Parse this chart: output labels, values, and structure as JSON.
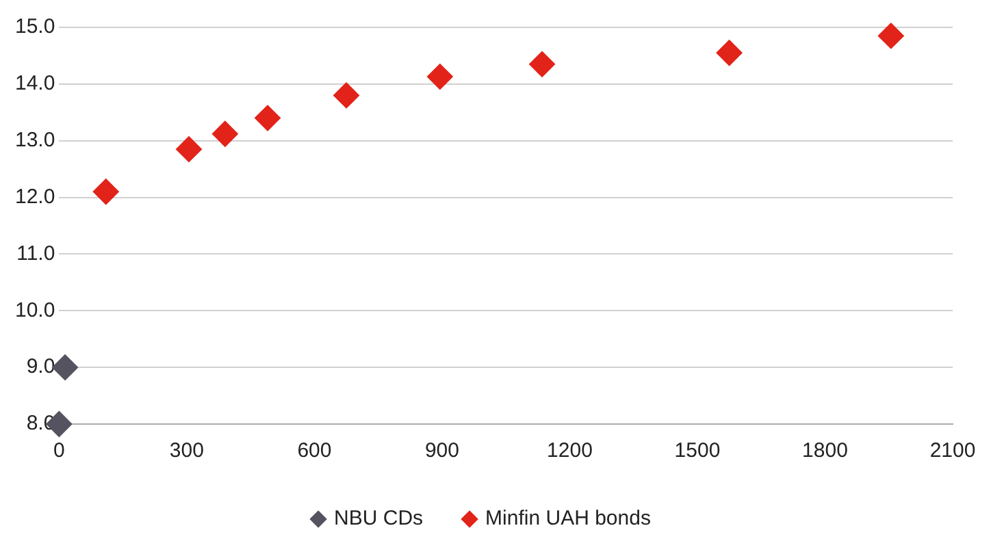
{
  "chart_data": {
    "type": "scatter",
    "grid": "y",
    "legend": "bottom",
    "marker": "diamond",
    "xlim": [
      0,
      2100
    ],
    "xticks": [
      0,
      300,
      600,
      900,
      1200,
      1500,
      1800,
      2100
    ],
    "ylim": [
      8,
      15
    ],
    "yticks": [
      {
        "value": 8,
        "label": "8.0"
      },
      {
        "value": 9,
        "label": "9.0"
      },
      {
        "value": 10,
        "label": "10.0"
      },
      {
        "value": 11,
        "label": "11.0"
      },
      {
        "value": 12,
        "label": "12.0"
      },
      {
        "value": 13,
        "label": "13.0"
      },
      {
        "value": 14,
        "label": "14.0"
      },
      {
        "value": 15,
        "label": "15.0"
      }
    ],
    "series": [
      {
        "name": "NBU CDs",
        "color": "#54535f",
        "x": [
          0,
          14
        ],
        "values": [
          8.0,
          9.0
        ]
      },
      {
        "name": "Minfin UAH bonds",
        "color": "#e2231a",
        "x": [
          110,
          305,
          390,
          490,
          675,
          895,
          1135,
          1575,
          1955
        ],
        "values": [
          12.1,
          12.85,
          13.12,
          13.4,
          13.8,
          14.13,
          14.35,
          14.55,
          14.85
        ]
      }
    ]
  }
}
